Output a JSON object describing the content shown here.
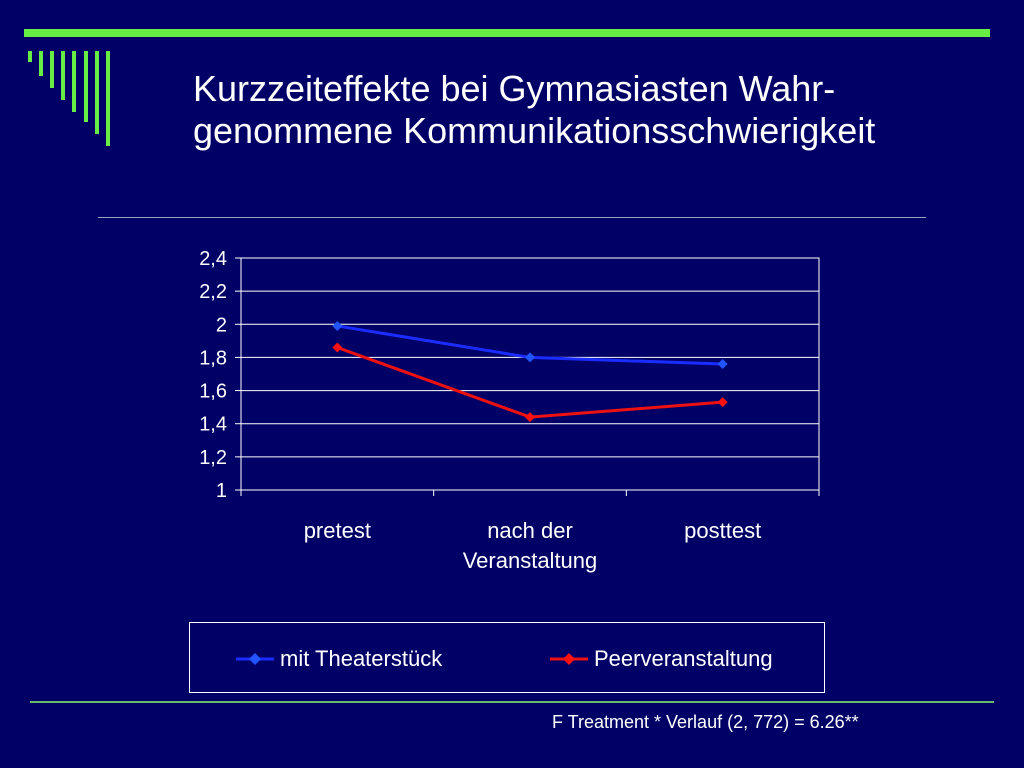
{
  "slide": {
    "title_line1": "Kurzzeiteffekte bei Gymnasiasten Wahr-",
    "title_line2": "genommene Kommunikationsschwierigkeit",
    "footnote": "F Treatment * Verlauf (2, 772) = 6.26**",
    "accent_color": "#66ee44"
  },
  "chart_data": {
    "type": "line",
    "title": "",
    "xlabel": "",
    "ylabel": "",
    "categories": [
      [
        "pretest"
      ],
      [
        "nach der",
        "Veranstaltung"
      ],
      [
        "posttest"
      ]
    ],
    "ylim": [
      1,
      2.4
    ],
    "yticks": [
      1,
      1.2,
      1.4,
      1.6,
      1.8,
      2,
      2.2,
      2.4
    ],
    "ytick_labels": [
      "1",
      "1,2",
      "1,4",
      "1,6",
      "1,8",
      "2",
      "2,2",
      "2,4"
    ],
    "grid": true,
    "legend_position": "bottom",
    "series": [
      {
        "name": "mit Theaterstück",
        "values": [
          1.99,
          1.8,
          1.76
        ],
        "color": "#1a2cff",
        "marker": "diamond"
      },
      {
        "name": "Peerveranstaltung",
        "values": [
          1.86,
          1.44,
          1.53
        ],
        "color": "#ee1111",
        "marker": "diamond"
      }
    ]
  }
}
